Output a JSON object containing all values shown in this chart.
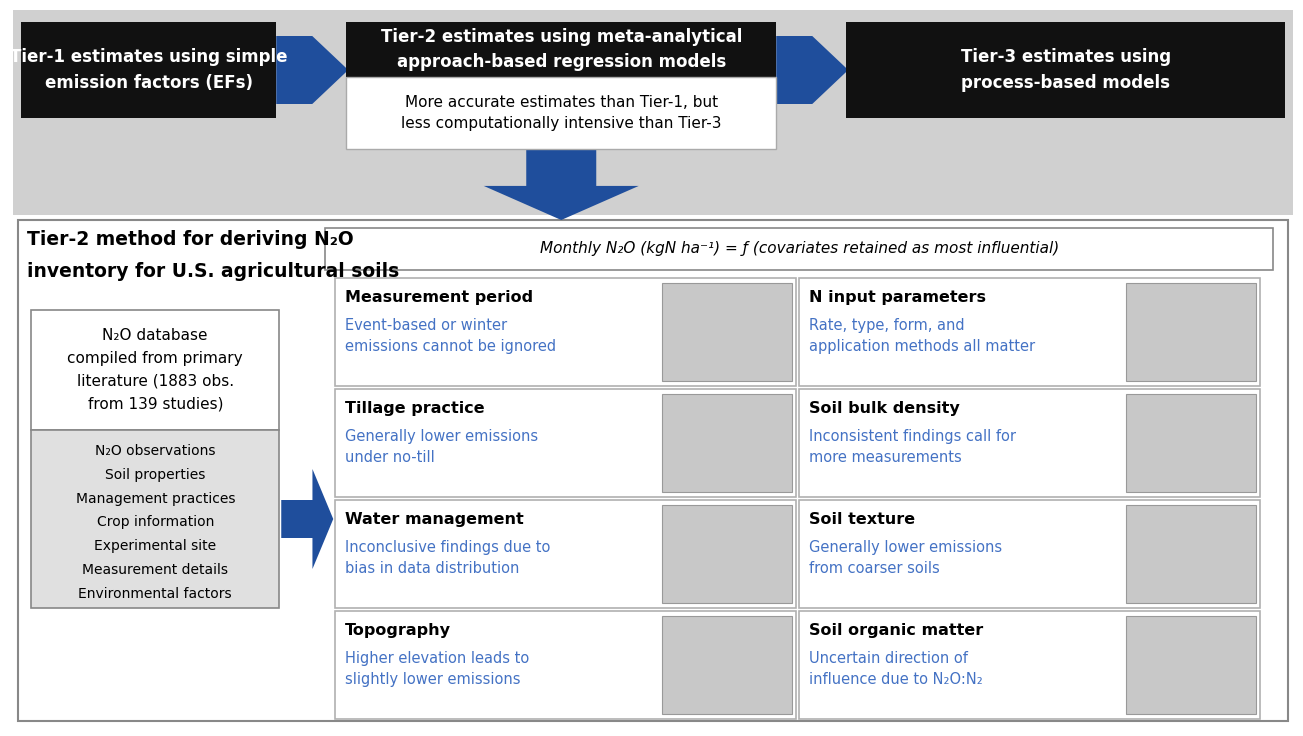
{
  "bg_color": "#ffffff",
  "top_bg": "#d4d4d4",
  "black_color": "#111111",
  "blue_color": "#1f4e9c",
  "tier1_text": "Tier-1 estimates using simple\nemission factors (EFs)",
  "tier2_header": "Tier-2 estimates using meta-analytical\napproach-based regression models",
  "tier2_body": "More accurate estimates than Tier-1, but\nless computationally intensive than Tier-3",
  "tier3_text": "Tier-3 estimates using\nprocess-based models",
  "bottom_title_l1": "Tier-2 method for deriving N₂O",
  "bottom_title_l2": "inventory for U.S. agricultural soils",
  "formula_text": "Monthly N₂O (kgN ha⁻¹) = ƒ (covariates retained as most influential)",
  "db_title": "N₂O database\ncompiled from primary\nliterature (1883 obs.\nfrom 139 studies)",
  "db_items": [
    "N₂O observations",
    "Soil properties",
    "Management practices",
    "Crop information",
    "Experimental site",
    "Measurement details",
    "Environmental factors"
  ],
  "cells": [
    {
      "title": "Measurement period",
      "body": "Event-based or winter\nemissions cannot be ignored",
      "col": 0,
      "row": 0
    },
    {
      "title": "N input parameters",
      "body": "Rate, type, form, and\napplication methods all matter",
      "col": 1,
      "row": 0
    },
    {
      "title": "Tillage practice",
      "body": "Generally lower emissions\nunder no-till",
      "col": 0,
      "row": 1
    },
    {
      "title": "Soil bulk density",
      "body": "Inconsistent findings call for\nmore measurements",
      "col": 1,
      "row": 1
    },
    {
      "title": "Water management",
      "body": "Inconclusive findings due to\nbias in data distribution",
      "col": 0,
      "row": 2
    },
    {
      "title": "Soil texture",
      "body": "Generally lower emissions\nfrom coarser soils",
      "col": 1,
      "row": 2
    },
    {
      "title": "Topography",
      "body": "Higher elevation leads to\nslightly lower emissions",
      "col": 0,
      "row": 3
    },
    {
      "title": "Soil organic matter",
      "body": "Uncertain direction of\ninfluence due to N₂O:N₂",
      "col": 1,
      "row": 3
    }
  ],
  "cell_title_color": "#000000",
  "cell_body_color": "#4472c4",
  "cell_border_color": "#b0b0b0"
}
